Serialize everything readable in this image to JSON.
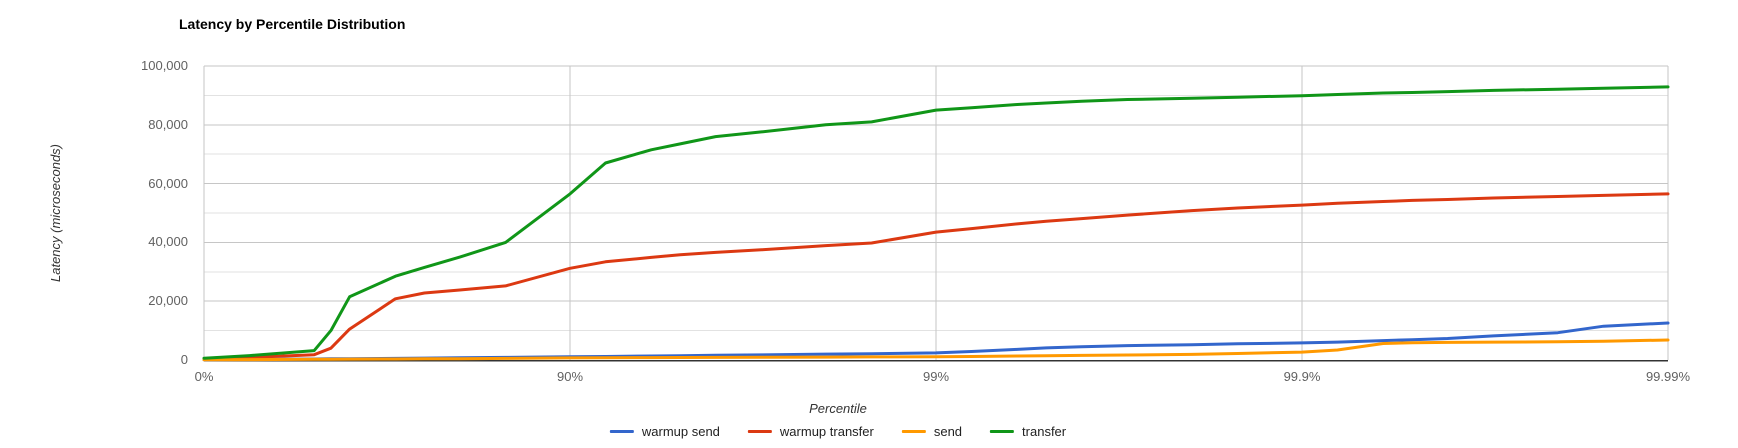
{
  "chart_data": {
    "type": "line",
    "title": "Latency by Percentile Distribution",
    "legend_position": "bottom",
    "grid": true,
    "x_axis": {
      "title": "Percentile",
      "scale": "log-percentile",
      "tick_labels": [
        "0%",
        "90%",
        "99%",
        "99.9%",
        "99.99%"
      ],
      "tick_log_values": [
        0,
        1,
        2,
        3,
        4
      ]
    },
    "y_axis": {
      "title": "Latency (microseconds)",
      "min": 0,
      "max": 100000,
      "major_tick_interval": 20000,
      "minor_gridline_interval": 10000,
      "tick_labels": [
        "0",
        "20,000",
        "40,000",
        "60,000",
        "80,000",
        "100,000"
      ]
    },
    "style": {
      "grid_color": "#c6c6c6",
      "minor_grid_color": "#e2e2e2",
      "baseline_color": "#333333",
      "line_width": 3
    },
    "percentiles": [
      0,
      25,
      50,
      55,
      60,
      70,
      75,
      80,
      85,
      90,
      92,
      94,
      95,
      96,
      97,
      98,
      98.5,
      99,
      99.2,
      99.4,
      99.5,
      99.6,
      99.7,
      99.8,
      99.85,
      99.9,
      99.92,
      99.94,
      99.95,
      99.96,
      99.97,
      99.98,
      99.985,
      99.99
    ],
    "series": [
      {
        "name": "warmup send",
        "color": "#3366CC",
        "values": [
          100,
          200,
          350,
          400,
          450,
          550,
          650,
          750,
          900,
          1100,
          1200,
          1350,
          1450,
          1600,
          1750,
          2000,
          2150,
          2400,
          2900,
          3600,
          4100,
          4500,
          4900,
          5200,
          5500,
          5800,
          6100,
          6600,
          6900,
          7300,
          8200,
          9300,
          11500,
          12600
        ]
      },
      {
        "name": "warmup transfer",
        "color": "#DC3912",
        "values": [
          400,
          900,
          1800,
          4000,
          10500,
          20800,
          22800,
          23800,
          25200,
          31200,
          33400,
          34900,
          35800,
          36600,
          37500,
          38900,
          39800,
          43500,
          44700,
          46300,
          47200,
          48100,
          49300,
          50800,
          51700,
          52700,
          53300,
          53900,
          54300,
          54600,
          55100,
          55600,
          56000,
          56500
        ]
      },
      {
        "name": "send",
        "color": "#FF9900",
        "values": [
          100,
          150,
          250,
          270,
          300,
          350,
          400,
          450,
          550,
          700,
          750,
          800,
          850,
          900,
          950,
          1000,
          1050,
          1100,
          1200,
          1350,
          1450,
          1550,
          1700,
          1900,
          2200,
          2700,
          3400,
          5600,
          5900,
          6000,
          6100,
          6200,
          6400,
          6800
        ]
      },
      {
        "name": "transfer",
        "color": "#109618",
        "values": [
          600,
          1500,
          3200,
          10000,
          21500,
          28500,
          31500,
          35000,
          40000,
          56500,
          67000,
          71500,
          73500,
          76000,
          77600,
          80000,
          81000,
          85000,
          85800,
          86900,
          87400,
          88000,
          88600,
          89000,
          89400,
          89900,
          90300,
          90800,
          91000,
          91300,
          91700,
          92100,
          92400,
          92900
        ]
      }
    ]
  }
}
